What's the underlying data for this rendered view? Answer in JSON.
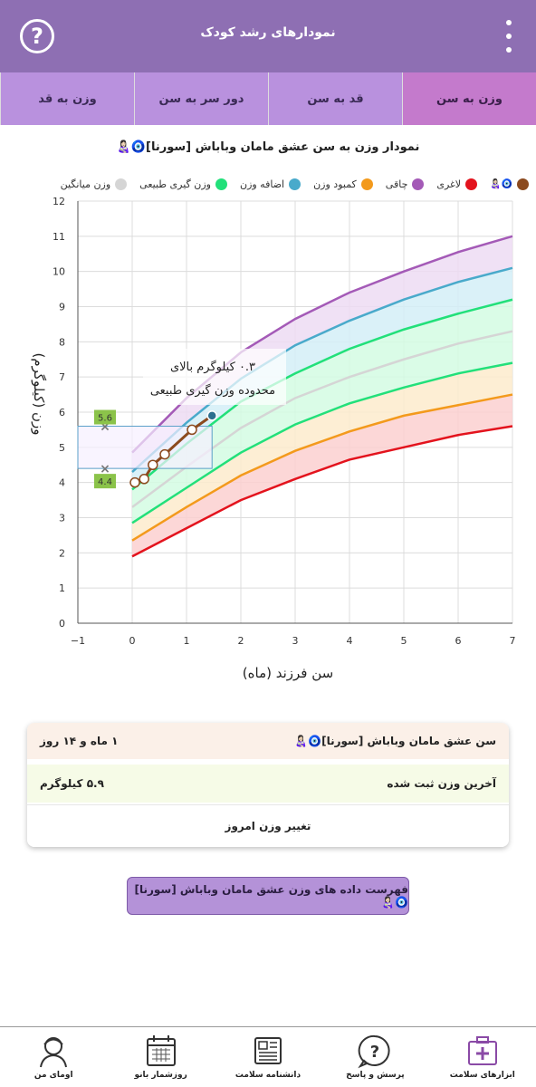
{
  "app": {
    "title": "نمودارهای رشد کودک"
  },
  "tabs": [
    {
      "label": "وزن به قد"
    },
    {
      "label": "دور سر به سن"
    },
    {
      "label": "قد به سن"
    },
    {
      "label": "وزن به سن"
    }
  ],
  "chart_title": "نمودار وزن به سن عشق مامان وباباش [سورنا]🧿👩🏻‍🍼",
  "legend": [
    {
      "label": "",
      "icon": "🧿👩🏻‍🍼",
      "color": "#8b4a1e"
    },
    {
      "label": "لاغری",
      "color": "#e3131d"
    },
    {
      "label": "چاقی",
      "color": "#a45ab7"
    },
    {
      "label": "کمبود وزن",
      "color": "#f39a1c"
    },
    {
      "label": "اضافه وزن",
      "color": "#49aacb"
    },
    {
      "label": "وزن گیری طبیعی",
      "color": "#22e07a"
    },
    {
      "label": "وزن میانگین",
      "color": "#d5d5d5"
    }
  ],
  "chart_data": {
    "type": "line",
    "xlabel": "سن فرزند (ماه)",
    "ylabel": "وزن (کیلوگرم)",
    "xlim": [
      -1,
      7
    ],
    "ylim": [
      0,
      12
    ],
    "x_ticks": [
      "−1",
      "0",
      "1",
      "2",
      "3",
      "4",
      "5",
      "6",
      "7"
    ],
    "y_ticks": [
      "0",
      "1",
      "2",
      "3",
      "4",
      "5",
      "6",
      "7",
      "8",
      "9",
      "10",
      "11",
      "12"
    ],
    "grid": true,
    "x": [
      0,
      1,
      2,
      3,
      4,
      5,
      6,
      7
    ],
    "series": [
      {
        "name": "لاغری",
        "color": "#e3131d",
        "values": [
          1.9,
          2.7,
          3.5,
          4.1,
          4.65,
          5.0,
          5.35,
          5.6
        ]
      },
      {
        "name": "کمبود وزن",
        "color": "#f39a1c",
        "values": [
          2.35,
          3.3,
          4.2,
          4.9,
          5.45,
          5.9,
          6.2,
          6.5
        ]
      },
      {
        "name": "وزن گیری طبیعی",
        "color": "#22e07a",
        "values": [
          2.85,
          3.85,
          4.85,
          5.65,
          6.25,
          6.7,
          7.1,
          7.4
        ]
      },
      {
        "name": "وزن میانگین",
        "color": "#d5d5d5",
        "values": [
          3.3,
          4.45,
          5.55,
          6.4,
          7.0,
          7.5,
          7.95,
          8.3
        ]
      },
      {
        "name": "وزن گیری طبیعی",
        "color": "#22e07a",
        "values": [
          3.8,
          5.1,
          6.3,
          7.1,
          7.8,
          8.35,
          8.8,
          9.2
        ]
      },
      {
        "name": "اضافه وزن",
        "color": "#49aacb",
        "values": [
          4.3,
          5.7,
          6.95,
          7.9,
          8.6,
          9.2,
          9.7,
          10.1
        ]
      },
      {
        "name": "چاقی",
        "color": "#a45ab7",
        "values": [
          4.85,
          6.4,
          7.7,
          8.65,
          9.4,
          10.0,
          10.55,
          11.0
        ]
      }
    ],
    "child_points": [
      {
        "x": 0.05,
        "y": 4.0
      },
      {
        "x": 0.22,
        "y": 4.1
      },
      {
        "x": 0.38,
        "y": 4.5
      },
      {
        "x": 0.6,
        "y": 4.8
      },
      {
        "x": 1.1,
        "y": 5.5
      },
      {
        "x": 1.47,
        "y": 5.9
      }
    ],
    "normal_range_upper": "5.6",
    "normal_range_lower": "4.4",
    "annotation": [
      "۰.۳ کیلوگرم بالای",
      "محدوده وزن گیری طبیعی"
    ]
  },
  "info": {
    "age_label": "سن عشق مامان وباباش [سورنا]🧿👩🏻‍🍼",
    "age_value": "۱ ماه و ۱۴ روز",
    "weight_label": "آخرین وزن ثبت شده",
    "weight_value": "۵.۹ کیلوگرم",
    "change_button": "تغییر وزن امروز"
  },
  "list_button": "فهرست داده های وزن عشق مامان وباباش [سورنا]🧿👩🏻‍🍼",
  "bottom_nav": [
    {
      "label": "اومای من",
      "icon": "person-icon"
    },
    {
      "label": "روزشمار بانو",
      "icon": "calendar-icon"
    },
    {
      "label": "دانشنامه سلامت",
      "icon": "newspaper-icon"
    },
    {
      "label": "پرسش و پاسخ",
      "icon": "question-bubble-icon"
    },
    {
      "label": "ابزارهای سلامت",
      "icon": "medkit-icon"
    }
  ]
}
